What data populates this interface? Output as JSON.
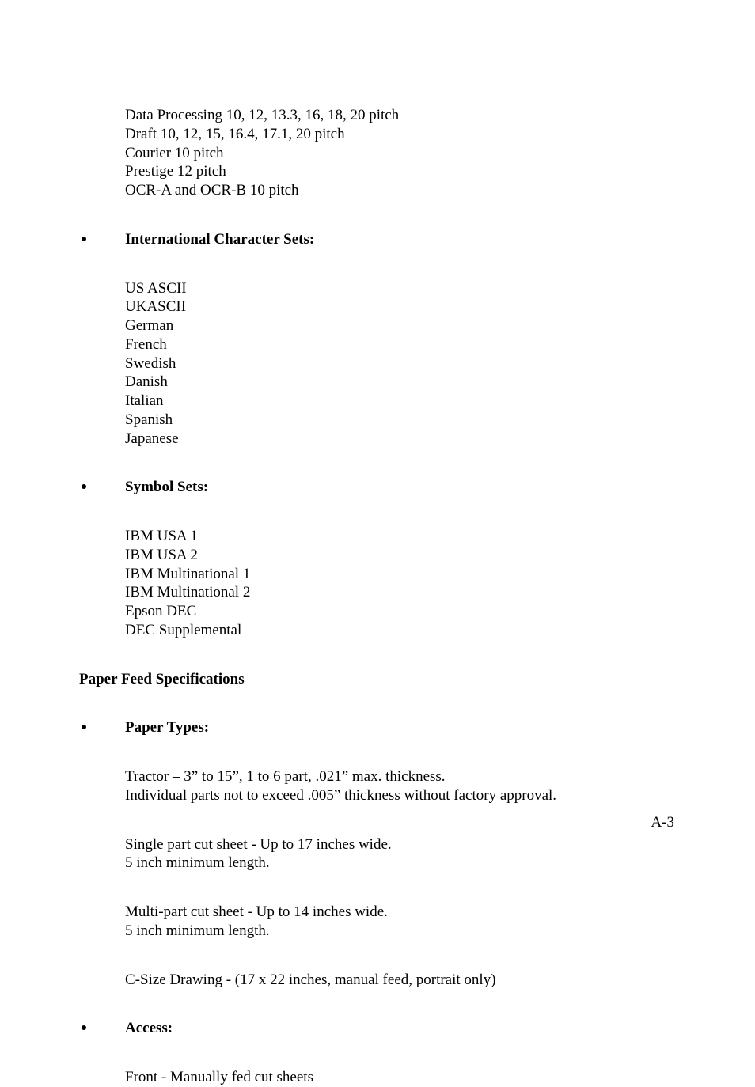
{
  "page_number": "A-3",
  "fonts_block": {
    "lines": [
      "Data Processing 10, 12, 13.3, 16, 18, 20 pitch",
      "Draft 10, 12, 15, 16.4, 17.1, 20 pitch",
      "Courier 10 pitch",
      "Prestige 12 pitch",
      "OCR-A and OCR-B 10 pitch"
    ]
  },
  "intl": {
    "heading": "International Character Sets:",
    "items": [
      "US ASCII",
      "UKASCII",
      "German",
      "French",
      "Swedish",
      "Danish",
      "Italian",
      "Spanish",
      "Japanese"
    ]
  },
  "symbol": {
    "heading": "Symbol Sets:",
    "items": [
      "IBM USA 1",
      "IBM USA 2",
      "IBM Multinational 1",
      "IBM Multinational 2",
      "Epson DEC",
      "DEC Supplemental"
    ]
  },
  "paper_feed_heading": "Paper Feed Specifications",
  "paper_types": {
    "heading": "Paper Types:",
    "p1_l1": "Tractor – 3” to 15”, 1 to 6 part, .021” max.  thickness.",
    "p1_l2": "Individual parts not to exceed .005” thickness without factory approval.",
    "p2_l1": "Single part cut sheet - Up to 17 inches wide.",
    "p2_l2": "5 inch minimum length.",
    "p3_l1": "Multi-part cut sheet - Up to 14 inches wide.",
    "p3_l2": "5 inch minimum length.",
    "p4": "C-Size Drawing - (17 x 22 inches, manual feed, portrait only)"
  },
  "access": {
    "heading": "Access:",
    "p1": "Front - Manually fed cut sheets"
  }
}
